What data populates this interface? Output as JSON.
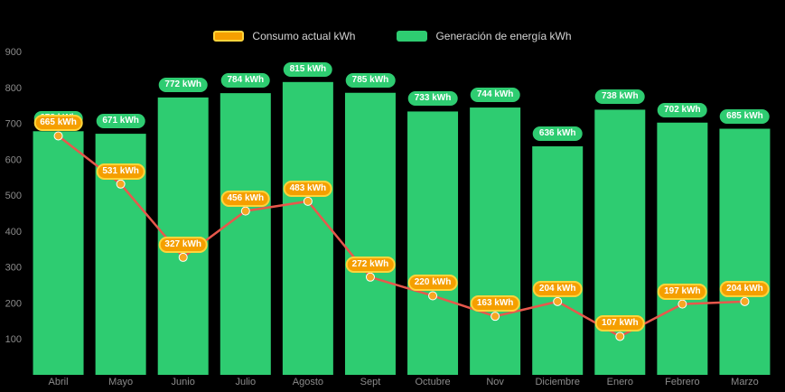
{
  "legend": {
    "consumo_label": "Consumo actual kWh",
    "generacion_label": "Generación de energía kWh"
  },
  "axis": {
    "y_ticks": [
      900,
      800,
      700,
      600,
      500,
      400,
      300,
      200,
      100
    ],
    "y_min": 0,
    "y_max": 900
  },
  "colors": {
    "background": "#000000",
    "bar": "#2ecc71",
    "bar_label_bg": "#2ecc71",
    "line": "#e8584c",
    "point": "#f5a623",
    "consumo_label_bg": "#f59f00",
    "consumo_label_border": "#ffd43b",
    "axis_text": "#8b8b8b",
    "legend_text": "#d4d4d4"
  },
  "chart_data": {
    "type": "bar",
    "title": "",
    "categories": [
      "Abril",
      "Mayo",
      "Junio",
      "Julio",
      "Agosto",
      "Sept",
      "Octubre",
      "Nov",
      "Diciembre",
      "Enero",
      "Febrero",
      "Marzo"
    ],
    "series": [
      {
        "name": "Generación de energía kWh",
        "type": "bar",
        "color": "#2ecc71",
        "values": [
          678,
          671,
          772,
          784,
          815,
          785,
          733,
          744,
          636,
          738,
          702,
          685
        ]
      },
      {
        "name": "Consumo actual kWh",
        "type": "line",
        "color": "#e8584c",
        "values": [
          665,
          531,
          327,
          456,
          483,
          272,
          220,
          163,
          204,
          107,
          197,
          204
        ]
      }
    ],
    "ylim": [
      0,
      900
    ],
    "ytick_step": 100,
    "label_suffix": " kWh",
    "grid": false,
    "legend_position": "top-center"
  }
}
